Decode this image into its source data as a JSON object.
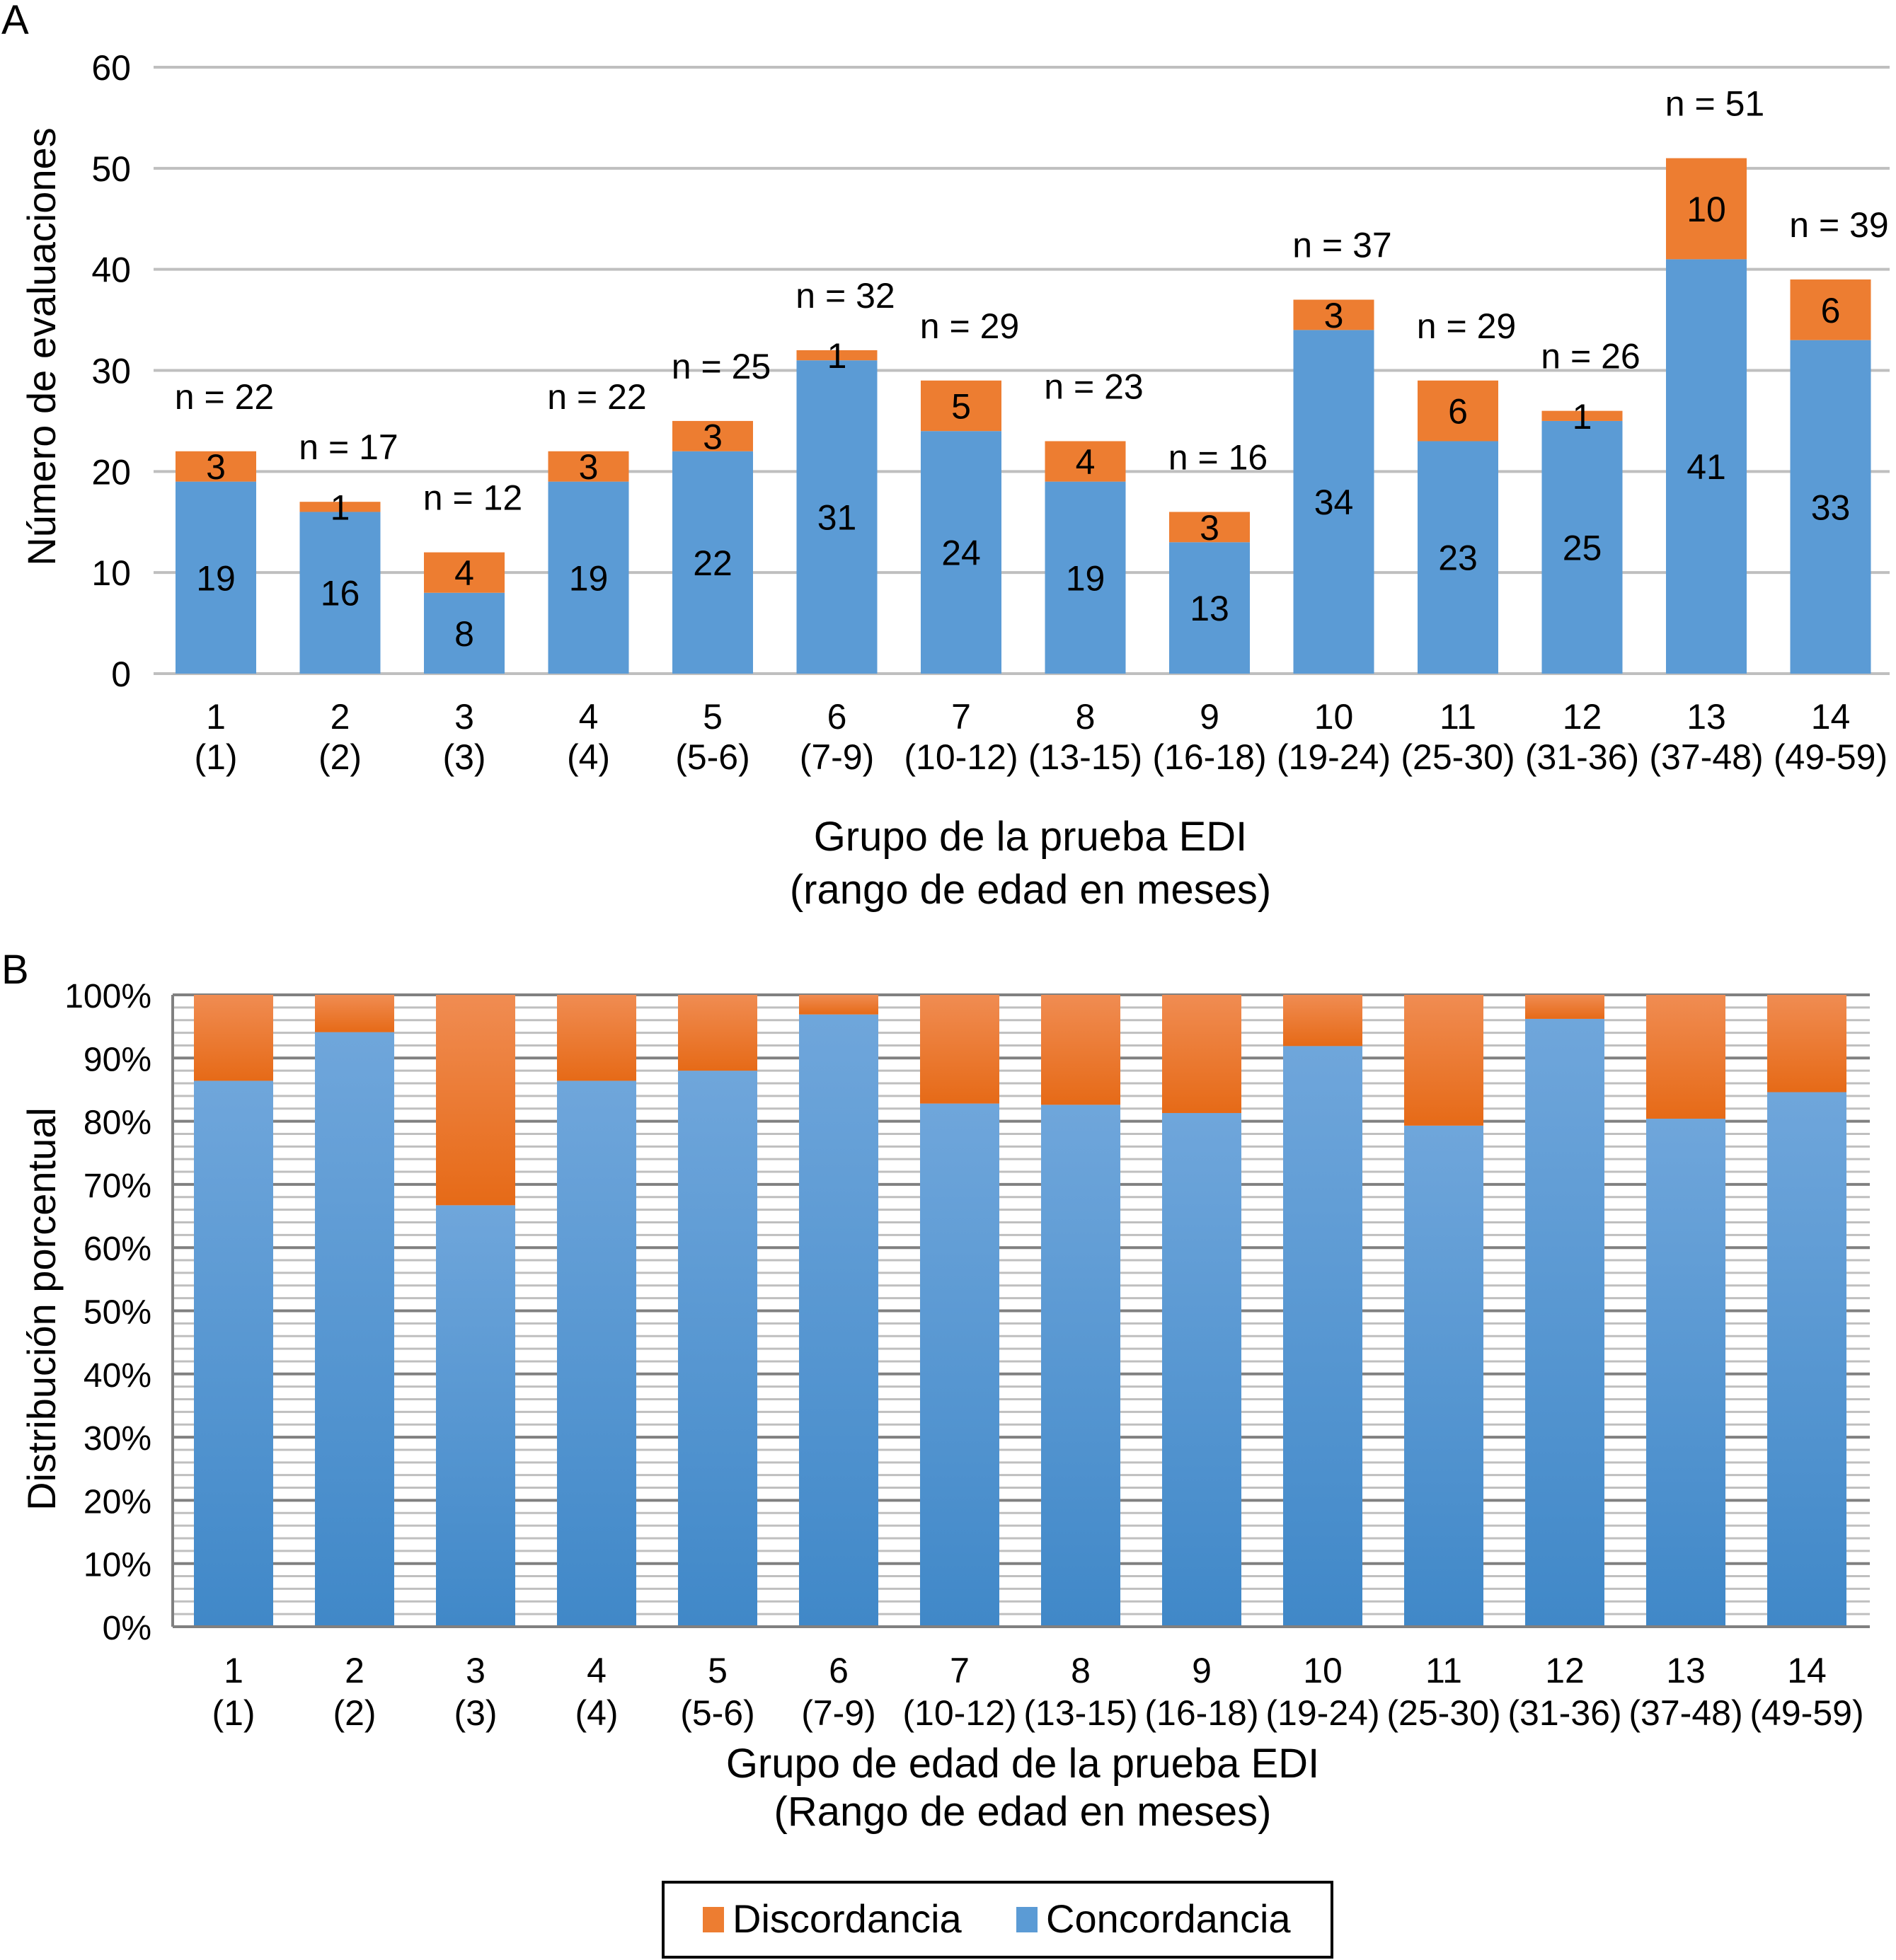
{
  "chart_data": [
    {
      "panel_label": "A",
      "type": "bar",
      "stacked": true,
      "title": "",
      "ylabel": "Número de evaluaciones",
      "xlabel_lines": [
        "Grupo de la prueba EDI",
        "(rango de edad en meses)"
      ],
      "ylim": [
        0,
        60
      ],
      "yticks": [
        0,
        10,
        20,
        30,
        40,
        50,
        60
      ],
      "grid": true,
      "categories": [
        "1",
        "2",
        "3",
        "4",
        "5",
        "6",
        "7",
        "8",
        "9",
        "10",
        "11",
        "12",
        "13",
        "14"
      ],
      "category_sublabels": [
        "(1)",
        "(2)",
        "(3)",
        "(4)",
        "(5-6)",
        "(7-9)",
        "(10-12)",
        "(13-15)",
        "(16-18)",
        "(19-24)",
        "(25-30)",
        "(31-36)",
        "(37-48)",
        "(49-59)"
      ],
      "series": [
        {
          "name": "Concordancia",
          "color": "#5B9BD5",
          "values": [
            19,
            16,
            8,
            19,
            22,
            31,
            24,
            19,
            13,
            34,
            23,
            25,
            41,
            33
          ]
        },
        {
          "name": "Discordancia",
          "color": "#ED7D31",
          "values": [
            3,
            1,
            4,
            3,
            3,
            1,
            5,
            4,
            3,
            3,
            6,
            1,
            10,
            6
          ]
        }
      ],
      "totals": [
        22,
        17,
        12,
        22,
        25,
        32,
        29,
        23,
        16,
        37,
        29,
        26,
        51,
        39
      ],
      "total_label_prefix": "n = "
    },
    {
      "panel_label": "B",
      "type": "bar",
      "stacked": true,
      "percent": true,
      "title": "",
      "ylabel": "Distribución porcentual",
      "xlabel_lines": [
        "Grupo de edad de la prueba EDI",
        "(Rango de edad en meses)"
      ],
      "ylim": [
        0,
        100
      ],
      "yticks": [
        "0%",
        "10%",
        "20%",
        "30%",
        "40%",
        "50%",
        "60%",
        "70%",
        "80%",
        "90%",
        "100%"
      ],
      "grid": true,
      "minor_grid_step": 2,
      "categories": [
        "1",
        "2",
        "3",
        "4",
        "5",
        "6",
        "7",
        "8",
        "9",
        "10",
        "11",
        "12",
        "13",
        "14"
      ],
      "category_sublabels": [
        "(1)",
        "(2)",
        "(3)",
        "(4)",
        "(5-6)",
        "(7-9)",
        "(10-12)",
        "(13-15)",
        "(16-18)",
        "(19-24)",
        "(25-30)",
        "(31-36)",
        "(37-48)",
        "(49-59)"
      ],
      "series": [
        {
          "name": "Concordancia",
          "color": "#5B9BD5",
          "values": [
            86.4,
            94.1,
            66.7,
            86.4,
            88.0,
            96.9,
            82.8,
            82.6,
            81.3,
            91.9,
            79.3,
            96.2,
            80.4,
            84.6
          ]
        },
        {
          "name": "Discordancia",
          "color": "#ED7D31",
          "values": [
            13.6,
            5.9,
            33.3,
            13.6,
            12.0,
            3.1,
            17.2,
            17.4,
            18.8,
            8.1,
            20.7,
            3.8,
            19.6,
            15.4
          ]
        }
      ],
      "legend": {
        "placement": "bottom-center",
        "entries": [
          {
            "name": "Discordancia",
            "color": "#ED7D31"
          },
          {
            "name": "Concordancia",
            "color": "#5B9BD5"
          }
        ]
      }
    }
  ]
}
